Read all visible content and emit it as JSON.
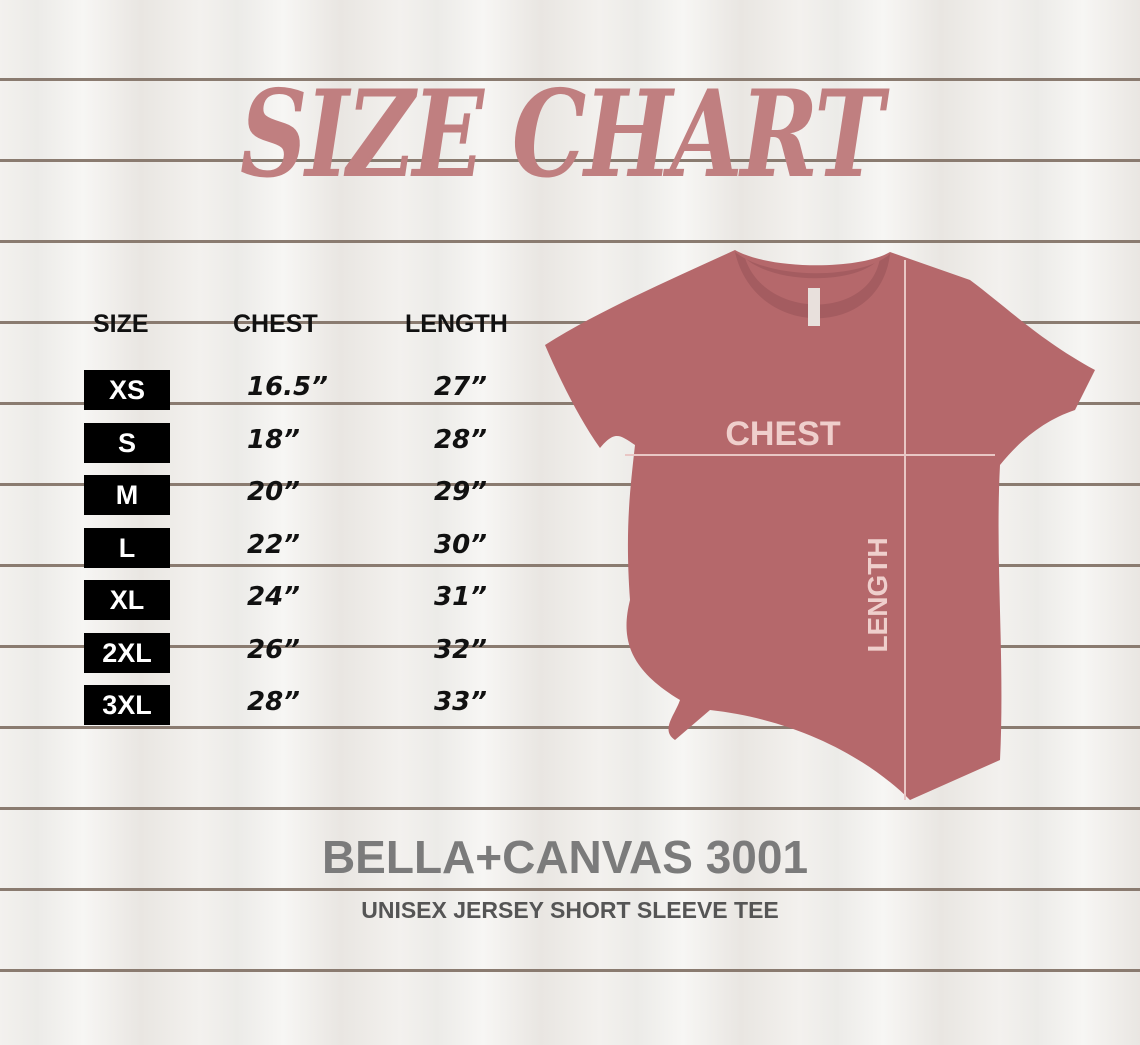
{
  "title": "SIZE CHART",
  "table": {
    "headers": [
      "SIZE",
      "CHEST",
      "LENGTH"
    ],
    "rows": [
      {
        "size": "XS",
        "chest": "16.5”",
        "length": "27”"
      },
      {
        "size": "S",
        "chest": "18”",
        "length": "28”"
      },
      {
        "size": "M",
        "chest": "20”",
        "length": "29”"
      },
      {
        "size": "L",
        "chest": "22”",
        "length": "30”"
      },
      {
        "size": "XL",
        "chest": "24”",
        "length": "31”"
      },
      {
        "size": "2XL",
        "chest": "26”",
        "length": "32”"
      },
      {
        "size": "3XL",
        "chest": "28”",
        "length": "33”"
      }
    ]
  },
  "shirt": {
    "chest_label": "CHEST",
    "length_label": "LENGTH",
    "color": "#b5686b"
  },
  "brand": "BELLA+CANVAS 3001",
  "subtitle": "UNISEX JERSEY SHORT SLEEVE TEE",
  "colors": {
    "title": "#c07f80",
    "brand": "#7b7b7b"
  }
}
